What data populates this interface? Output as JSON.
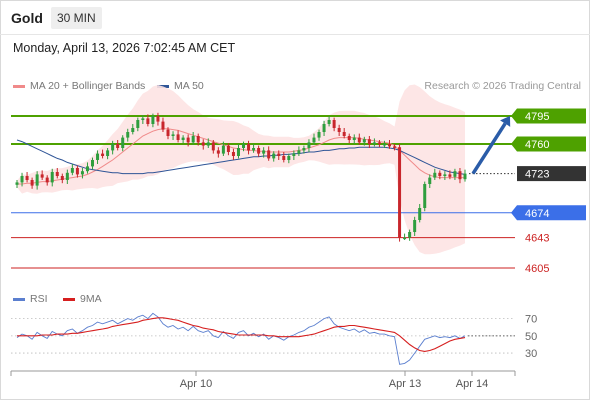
{
  "header": {
    "instrument": "Gold",
    "timeframe": "30 MIN",
    "datetime": "Monday, April 13, 2026 7:02:45 AM CET",
    "credit": "Research © 2026 Trading Central"
  },
  "legend": {
    "ma20": {
      "label": "MA 20 + Bollinger Bands",
      "color": "#f08a8a"
    },
    "ma50": {
      "label": "MA 50",
      "color": "#2f5597"
    },
    "rsi": {
      "label": "RSI",
      "color": "#5b7fcf"
    },
    "ma9": {
      "label": "9MA",
      "color": "#d61f1f"
    }
  },
  "chart_data": [
    {
      "type": "candlestick",
      "title": "Gold 30 MIN",
      "ylim": [
        4590,
        4815
      ],
      "levels": [
        {
          "value": 4795,
          "label": "4795",
          "kind": "resistance",
          "color": "#4ea100"
        },
        {
          "value": 4760,
          "label": "4760",
          "kind": "resistance",
          "color": "#4ea100"
        },
        {
          "value": 4723,
          "label": "4723",
          "kind": "last",
          "color": "#333333"
        },
        {
          "value": 4674,
          "label": "4674",
          "kind": "pivot",
          "color": "#3b6fe8"
        },
        {
          "value": 4643,
          "label": "4643",
          "kind": "support",
          "color": "#cc2222"
        },
        {
          "value": 4605,
          "label": "4605",
          "kind": "support",
          "color": "#cc2222"
        }
      ],
      "forecast_arrow": {
        "from": 4723,
        "to": 4795,
        "direction": "up"
      },
      "x_ticks": [
        "Apr 10",
        "Apr 13",
        "Apr 14"
      ],
      "close": [
        4712,
        4720,
        4715,
        4708,
        4722,
        4718,
        4712,
        4725,
        4720,
        4715,
        4724,
        4730,
        4722,
        4726,
        4732,
        4740,
        4748,
        4745,
        4752,
        4760,
        4755,
        4768,
        4775,
        4780,
        4790,
        4792,
        4785,
        4795,
        4788,
        4778,
        4770,
        4772,
        4765,
        4768,
        4762,
        4770,
        4762,
        4758,
        4762,
        4752,
        4748,
        4758,
        4750,
        4745,
        4755,
        4760,
        4752,
        4755,
        4748,
        4752,
        4742,
        4748,
        4745,
        4740,
        4745,
        4748,
        4752,
        4755,
        4762,
        4768,
        4775,
        4785,
        4790,
        4780,
        4775,
        4770,
        4765,
        4768,
        4762,
        4766,
        4760,
        4762,
        4760,
        4760,
        4757,
        4756,
        4643,
        4643,
        4650,
        4665,
        4680,
        4710,
        4718,
        4724,
        4720,
        4722,
        4719,
        4726,
        4716,
        4723
      ],
      "ma20": [
        4710,
        4710,
        4711,
        4711,
        4712,
        4713,
        4713,
        4714,
        4715,
        4716,
        4717,
        4718,
        4719,
        4720,
        4722,
        4725,
        4728,
        4732,
        4736,
        4740,
        4745,
        4750,
        4755,
        4760,
        4765,
        4770,
        4773,
        4776,
        4778,
        4779,
        4779,
        4778,
        4777,
        4775,
        4773,
        4771,
        4769,
        4767,
        4765,
        4763,
        4761,
        4759,
        4757,
        4755,
        4754,
        4753,
        4752,
        4752,
        4751,
        4751,
        4750,
        4750,
        4750,
        4750,
        4750,
        4751,
        4752,
        4753,
        4755,
        4757,
        4759,
        4762,
        4765,
        4767,
        4768,
        4768,
        4768,
        4768,
        4767,
        4766,
        4765,
        4764,
        4763,
        4762,
        4761,
        4758,
        4752,
        4746,
        4740,
        4734,
        4728,
        4724,
        4721,
        4719,
        4718,
        4718,
        4718,
        4718,
        4718,
        4718
      ],
      "ma50": [
        4765,
        4763,
        4760,
        4757,
        4754,
        4751,
        4748,
        4745,
        4742,
        4740,
        4737,
        4735,
        4733,
        4731,
        4729,
        4728,
        4727,
        4726,
        4725,
        4724,
        4724,
        4723,
        4723,
        4723,
        4723,
        4723,
        4724,
        4724,
        4725,
        4726,
        4727,
        4728,
        4729,
        4730,
        4731,
        4732,
        4733,
        4734,
        4735,
        4736,
        4737,
        4738,
        4739,
        4740,
        4741,
        4742,
        4743,
        4744,
        4744,
        4745,
        4745,
        4746,
        4746,
        4747,
        4747,
        4748,
        4748,
        4749,
        4750,
        4750,
        4751,
        4752,
        4752,
        4753,
        4754,
        4754,
        4755,
        4755,
        4756,
        4756,
        4756,
        4756,
        4756,
        4756,
        4755,
        4754,
        4752,
        4749,
        4746,
        4743,
        4740,
        4737,
        4734,
        4731,
        4729,
        4727,
        4725,
        4724,
        4723,
        4722
      ]
    },
    {
      "type": "line",
      "title": "RSI",
      "ylim": [
        15,
        80
      ],
      "y_ticks": [
        70,
        50,
        30
      ],
      "series": [
        {
          "name": "RSI",
          "values": [
            48,
            52,
            50,
            46,
            54,
            50,
            47,
            55,
            52,
            50,
            56,
            58,
            53,
            56,
            60,
            62,
            66,
            64,
            66,
            68,
            64,
            67,
            70,
            68,
            72,
            74,
            70,
            76,
            72,
            64,
            60,
            62,
            58,
            60,
            56,
            61,
            56,
            54,
            56,
            50,
            48,
            55,
            50,
            47,
            54,
            56,
            50,
            53,
            49,
            52,
            46,
            50,
            48,
            45,
            49,
            51,
            54,
            56,
            60,
            62,
            66,
            70,
            72,
            64,
            60,
            58,
            56,
            58,
            54,
            57,
            53,
            54,
            52,
            52,
            50,
            49,
            17,
            18,
            22,
            30,
            38,
            46,
            48,
            50,
            48,
            49,
            48,
            50,
            47,
            50
          ]
        },
        {
          "name": "9MA",
          "values": [
            50,
            50,
            50,
            50,
            50,
            51,
            51,
            51,
            52,
            52,
            52,
            53,
            53,
            54,
            55,
            56,
            57,
            58,
            59,
            61,
            62,
            63,
            64,
            65,
            66,
            68,
            69,
            70,
            71,
            71,
            70,
            69,
            68,
            66,
            64,
            62,
            61,
            59,
            58,
            57,
            55,
            54,
            53,
            52,
            51,
            51,
            51,
            51,
            51,
            51,
            50,
            50,
            49,
            49,
            49,
            49,
            49,
            50,
            51,
            52,
            54,
            56,
            58,
            60,
            61,
            61,
            62,
            62,
            61,
            60,
            59,
            58,
            57,
            56,
            55,
            54,
            50,
            45,
            40,
            36,
            33,
            32,
            33,
            35,
            38,
            41,
            44,
            46,
            47,
            48
          ]
        }
      ]
    }
  ]
}
